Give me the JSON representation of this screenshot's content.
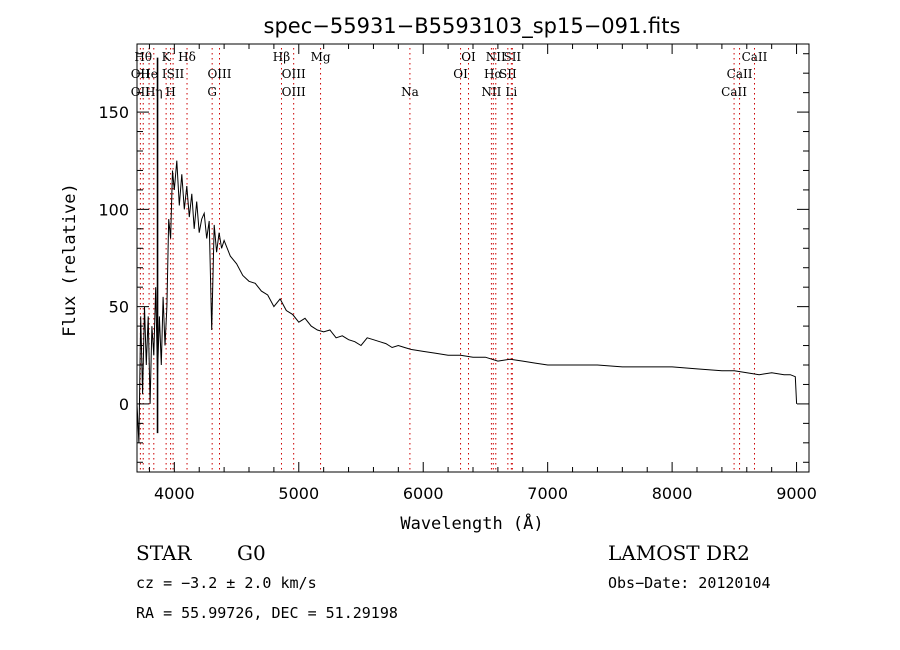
{
  "chart_data": {
    "type": "line",
    "title": "spec−55931−B5593103_sp15−091.fits",
    "xlabel": "Wavelength (Å)",
    "ylabel": "Flux (relative)",
    "xlim": [
      3700,
      9100
    ],
    "ylim": [
      -35,
      185
    ],
    "x_ticks": [
      4000,
      5000,
      6000,
      7000,
      8000,
      9000
    ],
    "x_tick_labels": [
      "4000",
      "5000",
      "6000",
      "7000",
      "8000",
      "9000"
    ],
    "y_ticks": [
      0,
      50,
      100,
      150
    ],
    "y_tick_labels": [
      "0",
      "50",
      "100",
      "150"
    ],
    "x_minor_step": 200,
    "y_minor_step": 10,
    "grid": false,
    "line_color": "#000000",
    "marker_color": "#cc0000",
    "series": [
      {
        "x": [
          3700,
          3715,
          3730,
          3745,
          3760,
          3775,
          3790,
          3805,
          3820,
          3835,
          3850,
          3865,
          3880,
          3895,
          3910,
          3925,
          3940,
          3955,
          3970,
          3985,
          4000,
          4020,
          4040,
          4060,
          4080,
          4100,
          4120,
          4140,
          4160,
          4180,
          4200,
          4220,
          4240,
          4260,
          4280,
          4300,
          4320,
          4340,
          4360,
          4380,
          4400,
          4450,
          4500,
          4550,
          4600,
          4650,
          4700,
          4750,
          4800,
          4850,
          4900,
          4950,
          5000,
          5050,
          5100,
          5150,
          5200,
          5250,
          5300,
          5350,
          5400,
          5450,
          5500,
          5550,
          5600,
          5650,
          5700,
          5750,
          5800,
          5850,
          5900,
          6000,
          6100,
          6200,
          6300,
          6400,
          6500,
          6600,
          6700,
          6800,
          6900,
          7000,
          7200,
          7400,
          7600,
          7800,
          8000,
          8200,
          8400,
          8500,
          8600,
          8700,
          8800,
          8900,
          8950,
          8990,
          9000
        ],
        "y": [
          0,
          -20,
          45,
          5,
          50,
          20,
          45,
          0,
          40,
          25,
          60,
          15,
          45,
          20,
          55,
          30,
          50,
          95,
          85,
          120,
          110,
          125,
          102,
          118,
          100,
          112,
          96,
          108,
          90,
          104,
          88,
          95,
          98,
          85,
          94,
          38,
          92,
          78,
          88,
          80,
          84,
          76,
          72,
          66,
          63,
          62,
          58,
          56,
          50,
          54,
          48,
          46,
          42,
          44,
          40,
          38,
          37,
          38,
          34,
          35,
          33,
          32,
          30,
          34,
          33,
          32,
          31,
          29,
          30,
          29,
          28,
          27,
          26,
          25,
          25,
          24,
          24,
          22,
          23,
          22,
          21,
          20,
          20,
          20,
          19,
          19,
          19,
          18,
          17,
          17,
          16,
          15,
          16,
          15,
          15,
          14,
          0
        ]
      }
    ],
    "markers": [
      {
        "x": 3750,
        "label": "Hθ",
        "row": 1
      },
      {
        "x": 3727,
        "label": "OII",
        "row": 2
      },
      {
        "x": 3727,
        "label": "OII",
        "row": 3
      },
      {
        "x": 3797,
        "label": "He",
        "row": 2
      },
      {
        "x": 3835,
        "label": "Hη",
        "row": 3
      },
      {
        "x": 3934,
        "label": "K",
        "row": 1
      },
      {
        "x": 3970,
        "label": "H",
        "row": 3
      },
      {
        "x": 3990,
        "label": "ISII",
        "row": 2
      },
      {
        "x": 4102,
        "label": "Hδ",
        "row": 1
      },
      {
        "x": 4304,
        "label": "G",
        "row": 3
      },
      {
        "x": 4363,
        "label": "OIII",
        "row": 2
      },
      {
        "x": 4861,
        "label": "Hβ",
        "row": 1
      },
      {
        "x": 4959,
        "label": "OIII",
        "row": 2
      },
      {
        "x": 4959,
        "label": "OIII",
        "row": 3
      },
      {
        "x": 5175,
        "label": "Mg",
        "row": 1
      },
      {
        "x": 5893,
        "label": "Na",
        "row": 3
      },
      {
        "x": 6300,
        "label": "OI",
        "row": 2
      },
      {
        "x": 6364,
        "label": "OI",
        "row": 1
      },
      {
        "x": 6548,
        "label": "NII",
        "row": 3
      },
      {
        "x": 6563,
        "label": "Hα",
        "row": 2
      },
      {
        "x": 6583,
        "label": "NII",
        "row": 1
      },
      {
        "x": 6680,
        "label": "SII",
        "row": 2
      },
      {
        "x": 6708,
        "label": "Li",
        "row": 3
      },
      {
        "x": 6716,
        "label": "SII",
        "row": 1
      },
      {
        "x": 8498,
        "label": "CaII",
        "row": 3
      },
      {
        "x": 8542,
        "label": "CaII",
        "row": 2
      },
      {
        "x": 8662,
        "label": "CaII",
        "row": 1
      }
    ]
  },
  "info": {
    "class_label": "STAR",
    "subclass": "G0",
    "survey": "LAMOST DR2",
    "cz_line": "cz = −3.2 ± 2.0 km/s",
    "obs_date": "Obs−Date: 20120104",
    "coords": "RA =  55.99726, DEC =  51.29198"
  }
}
